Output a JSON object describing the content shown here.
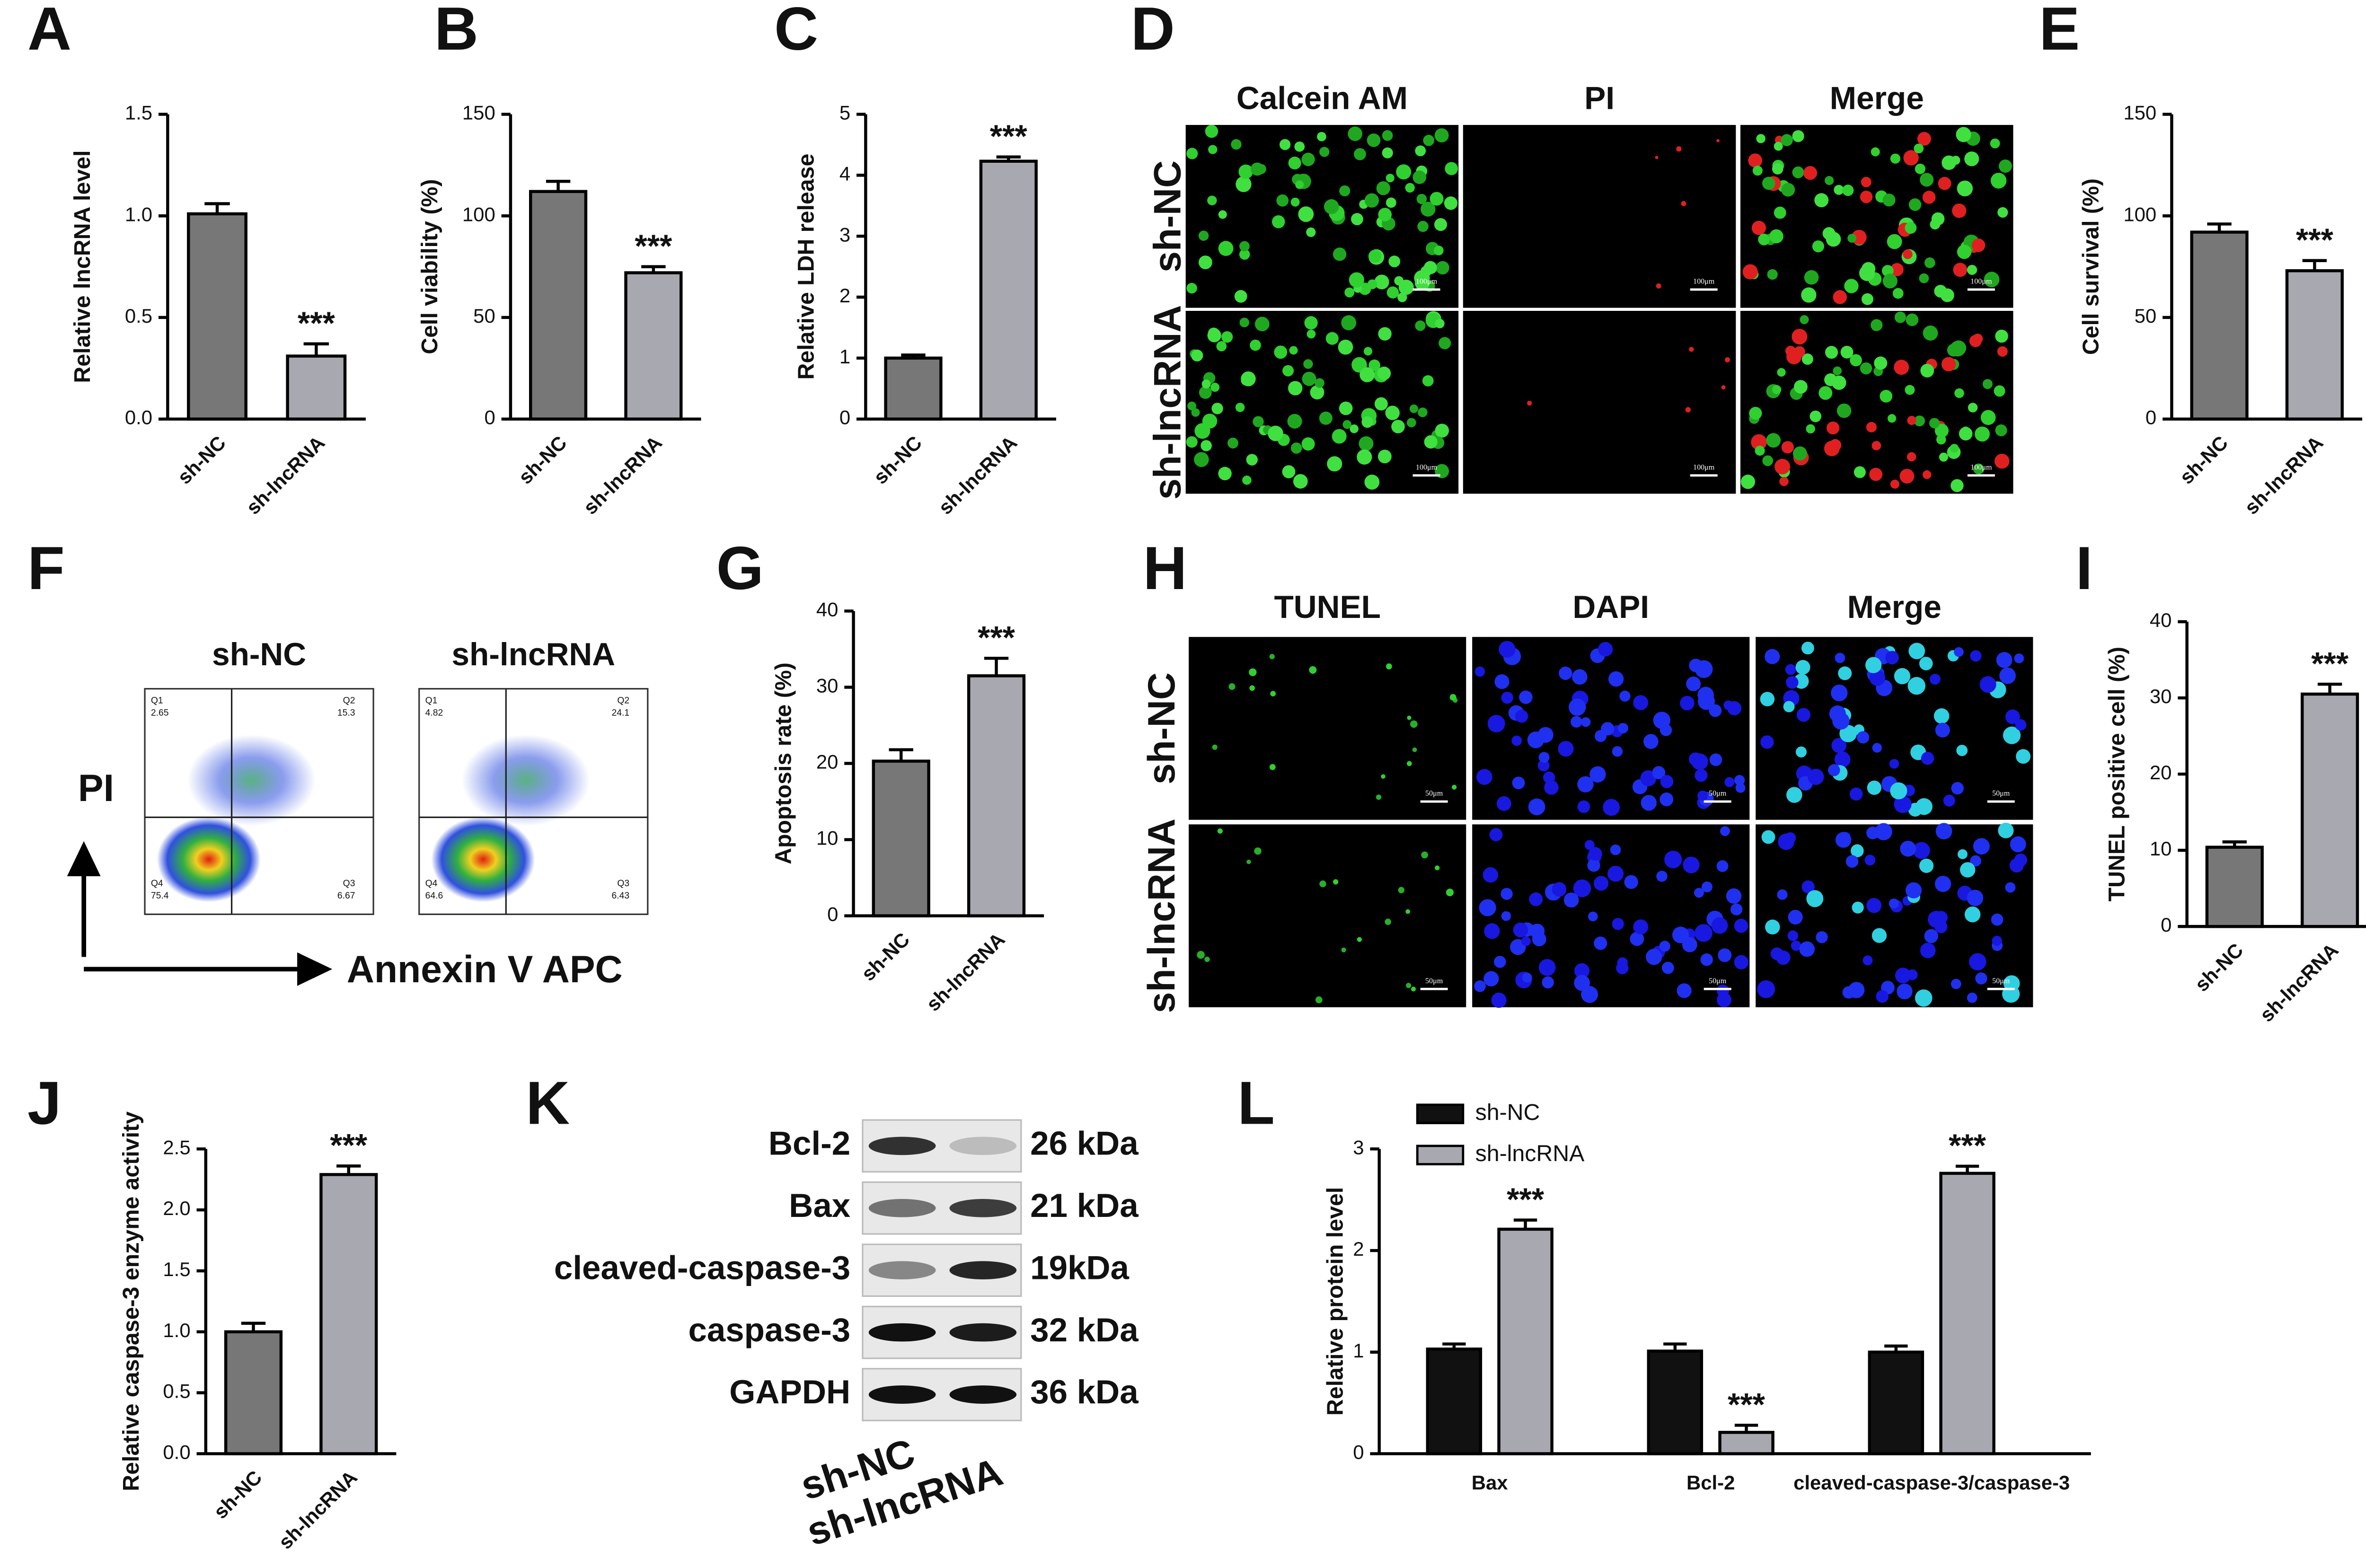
{
  "chart_data": [
    {
      "type": "bar",
      "panel": "A",
      "ylabel": "Relative lncRNA level",
      "categories": [
        "sh-NC",
        "sh-lncRNA"
      ],
      "values": [
        1.01,
        0.31
      ],
      "errors": [
        0.05,
        0.06
      ],
      "colors": [
        "#777777",
        "#a8a8b0"
      ],
      "annotation": "***",
      "ylim": [
        0,
        1.5
      ],
      "yticks": [
        {
          "value": 0,
          "label": "0.0"
        },
        0.5,
        {
          "value": 1,
          "label": "1.0"
        },
        1.5
      ]
    },
    {
      "type": "bar",
      "panel": "B",
      "ylabel": "Cell viability (%)",
      "categories": [
        "sh-NC",
        "sh-lncRNA"
      ],
      "values": [
        112,
        72
      ],
      "errors": [
        5,
        3
      ],
      "colors": [
        "#777777",
        "#a8a8b0"
      ],
      "annotation": "***",
      "ylim": [
        0,
        150
      ],
      "yticks": [
        0,
        50,
        100,
        150
      ]
    },
    {
      "type": "bar",
      "panel": "C",
      "ylabel": "Relative LDH release",
      "categories": [
        "sh-NC",
        "sh-lncRNA"
      ],
      "values": [
        1.0,
        4.23
      ],
      "errors": [
        0.05,
        0.07
      ],
      "colors": [
        "#777777",
        "#a8a8b0"
      ],
      "annotation": "***",
      "ylim": [
        0,
        5
      ],
      "yticks": [
        0,
        1,
        2,
        3,
        4,
        5
      ]
    },
    {
      "type": "bar",
      "panel": "E",
      "ylabel": "Cell survival (%)",
      "categories": [
        "sh-NC",
        "sh-lncRNA"
      ],
      "values": [
        92,
        73
      ],
      "errors": [
        4,
        5
      ],
      "colors": [
        "#777777",
        "#a8a8b0"
      ],
      "annotation": "***",
      "ylim": [
        0,
        150
      ],
      "yticks": [
        0,
        50,
        100,
        150
      ]
    },
    {
      "type": "bar",
      "panel": "G",
      "ylabel": "Apoptosis rate (%)",
      "categories": [
        "sh-NC",
        "sh-lncRNA"
      ],
      "values": [
        20.3,
        31.5
      ],
      "errors": [
        1.5,
        2.3
      ],
      "colors": [
        "#777777",
        "#a8a8b0"
      ],
      "annotation": "***",
      "ylim": [
        0,
        40
      ],
      "yticks": [
        0,
        10,
        20,
        30,
        40
      ]
    },
    {
      "type": "bar",
      "panel": "I",
      "ylabel": "TUNEL positive cell (%)",
      "categories": [
        "sh-NC",
        "sh-lncRNA"
      ],
      "values": [
        10.4,
        30.5
      ],
      "errors": [
        0.7,
        1.3
      ],
      "colors": [
        "#777777",
        "#a8a8b0"
      ],
      "annotation": "***",
      "ylim": [
        0,
        40
      ],
      "yticks": [
        0,
        10,
        20,
        30,
        40
      ]
    },
    {
      "type": "bar",
      "panel": "J",
      "ylabel": "Relative caspase-3 enzyme activity",
      "categories": [
        "sh-NC",
        "sh-lncRNA"
      ],
      "values": [
        1.0,
        2.29
      ],
      "errors": [
        0.07,
        0.07
      ],
      "colors": [
        "#777777",
        "#a8a8b0"
      ],
      "annotation": "***",
      "ylim": [
        0,
        2.5
      ],
      "yticks": [
        {
          "value": 0,
          "label": "0.0"
        },
        0.5,
        {
          "value": 1,
          "label": "1.0"
        },
        1.5,
        {
          "value": 2,
          "label": "2.0"
        },
        2.5
      ]
    },
    {
      "type": "grouped-bar",
      "panel": "L",
      "ylabel": "Relative protein level",
      "categories": [
        "Bax",
        "Bcl-2",
        "cleaved-caspase-3/caspase-3"
      ],
      "series": [
        {
          "name": "sh-NC",
          "color": "#111111",
          "values": [
            1.03,
            1.01,
            1.0
          ],
          "errors": [
            0.05,
            0.07,
            0.06
          ]
        },
        {
          "name": "sh-lncRNA",
          "color": "#a8a8b0",
          "values": [
            2.21,
            0.21,
            2.76
          ],
          "errors": [
            0.09,
            0.07,
            0.07
          ],
          "annotation": "***"
        }
      ],
      "ylim": [
        0,
        3
      ],
      "yticks": [
        0,
        1,
        2,
        3
      ],
      "legend": "top-left"
    }
  ],
  "panel_d": {
    "panel": "D",
    "columns": [
      "Calcein AM",
      "PI",
      "Merge"
    ],
    "rows": [
      "sh-NC",
      "sh-lncRNA"
    ],
    "scale_bar": "100μm"
  },
  "panel_h": {
    "panel": "H",
    "columns": [
      "TUNEL",
      "DAPI",
      "Merge"
    ],
    "rows": [
      "sh-NC",
      "sh-lncRNA"
    ],
    "scale_bar": "50μm"
  },
  "panel_f": {
    "panel": "F",
    "xlabel": "Annexin V APC",
    "ylabel": "PI",
    "plots": [
      {
        "title": "sh-NC",
        "quadrants": [
          {
            "name": "Q1",
            "value": "2.65"
          },
          {
            "name": "Q2",
            "value": "15.3"
          },
          {
            "name": "Q3",
            "value": "6.67"
          },
          {
            "name": "Q4",
            "value": "75.4"
          }
        ]
      },
      {
        "title": "sh-lncRNA",
        "quadrants": [
          {
            "name": "Q1",
            "value": "4.82"
          },
          {
            "name": "Q2",
            "value": "24.1"
          },
          {
            "name": "Q3",
            "value": "6.43"
          },
          {
            "name": "Q4",
            "value": "64.6"
          }
        ]
      }
    ]
  },
  "panel_k": {
    "panel": "K",
    "proteins": [
      "Bcl-2",
      "Bax",
      "cleaved-caspase-3",
      "caspase-3",
      "GAPDH"
    ],
    "sizes": [
      "26 kDa",
      "21 kDa",
      "19kDa",
      "32 kDa",
      "36 kDa"
    ],
    "lanes": [
      "sh-NC",
      "sh-lncRNA"
    ]
  }
}
